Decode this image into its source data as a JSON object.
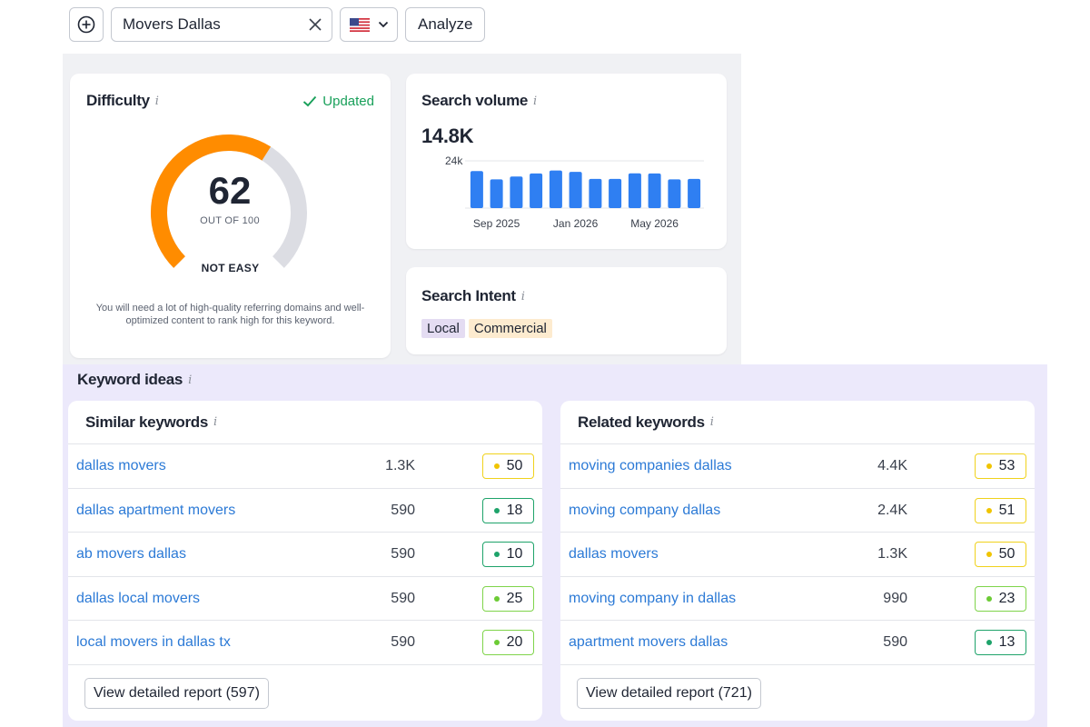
{
  "toolbar": {
    "add_icon": "plus-circle-icon",
    "search_value": "Movers Dallas",
    "clear_icon": "close-icon",
    "country_flag": "us-flag-icon",
    "analyze_label": "Analyze"
  },
  "difficulty": {
    "title": "Difficulty",
    "info": "i",
    "status": "Updated",
    "value": "62",
    "max_label": "OUT OF 100",
    "level": "NOT EASY",
    "description": "You will need a lot of high-quality referring domains and well-optimized content to rank high for this keyword.",
    "gauge_fraction": 0.62,
    "colors": {
      "filled": "#ff8c00",
      "track": "#dcdde3"
    }
  },
  "search_volume": {
    "title": "Search volume",
    "info": "i",
    "value": "14.8K",
    "accent": "#2f7ff2"
  },
  "chart_data": {
    "type": "bar",
    "categories": [
      "Aug 2025",
      "Sep 2025",
      "Oct 2025",
      "Nov 2025",
      "Dec 2025",
      "Jan 2026",
      "Feb 2026",
      "Mar 2026",
      "Apr 2026",
      "May 2026",
      "Jun 2026",
      "Jul 2026"
    ],
    "values": [
      18800,
      14600,
      16000,
      17600,
      19100,
      18400,
      14800,
      14800,
      17700,
      17600,
      14600,
      14800
    ],
    "ylim": [
      0,
      24000
    ],
    "y_tick_labels": [
      "24k"
    ],
    "x_tick_labels": [
      "Sep 2025",
      "Jan 2026",
      "May 2026"
    ],
    "grid": true
  },
  "search_intent": {
    "title": "Search Intent",
    "info": "i",
    "tags": [
      "Local",
      "Commercial"
    ]
  },
  "keyword_ideas": {
    "title": "Keyword ideas",
    "info": "i",
    "similar": {
      "title": "Similar keywords",
      "info": "i",
      "rows": [
        {
          "keyword": "dallas movers",
          "volume": "1.3K",
          "kd": "50",
          "level": "yellow"
        },
        {
          "keyword": "dallas apartment movers",
          "volume": "590",
          "kd": "18",
          "level": "green"
        },
        {
          "keyword": "ab movers dallas",
          "volume": "590",
          "kd": "10",
          "level": "green"
        },
        {
          "keyword": "dallas local movers",
          "volume": "590",
          "kd": "25",
          "level": "lime"
        },
        {
          "keyword": "local movers in dallas tx",
          "volume": "590",
          "kd": "20",
          "level": "lime"
        }
      ],
      "button": "View detailed report (597)"
    },
    "related": {
      "title": "Related keywords",
      "info": "i",
      "rows": [
        {
          "keyword": "moving companies dallas",
          "volume": "4.4K",
          "kd": "53",
          "level": "yellow"
        },
        {
          "keyword": "moving company dallas",
          "volume": "2.4K",
          "kd": "51",
          "level": "yellow"
        },
        {
          "keyword": "dallas movers",
          "volume": "1.3K",
          "kd": "50",
          "level": "yellow"
        },
        {
          "keyword": "moving company in dallas",
          "volume": "990",
          "kd": "23",
          "level": "lime"
        },
        {
          "keyword": "apartment movers dallas",
          "volume": "590",
          "kd": "13",
          "level": "green"
        }
      ],
      "button": "View detailed report (721)"
    }
  }
}
